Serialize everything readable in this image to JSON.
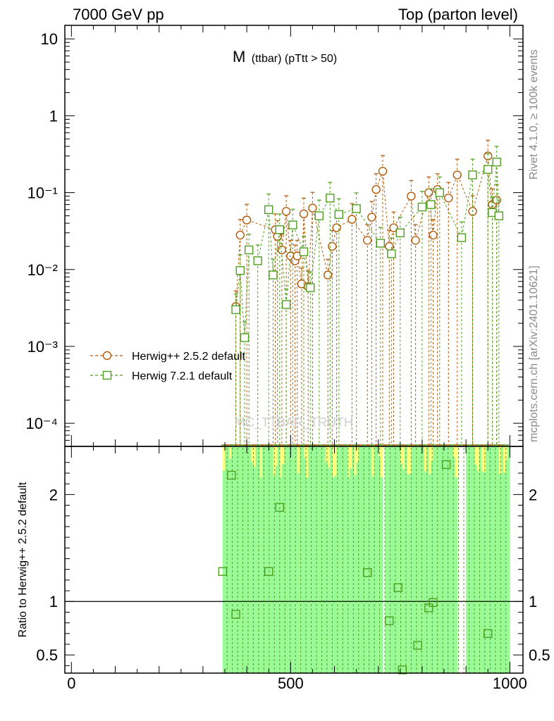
{
  "header": {
    "energy_label": "7000 GeV pp",
    "process_label": "Top (parton level)"
  },
  "side_text": {
    "rivet": "Rivet 4.1.0, ≥ 100k events",
    "mcplots": "mcplots.cern.ch [arXiv:2401.10621]"
  },
  "watermark": "MC_TTBAR_TRUTH",
  "chart_data": {
    "type": "line",
    "title": "M (ttbar) (pTtt > 50)",
    "title_main": "M",
    "title_sub": "(ttbar) (pTtt > 50)",
    "xlabel": "",
    "ylabel": "",
    "xlim": [
      -15,
      1030
    ],
    "ylim": [
      5e-05,
      15
    ],
    "y_scale": "log",
    "x_ticks": [
      "0",
      "500",
      "1000"
    ],
    "y_ticks": [
      "10",
      "1",
      "10⁻¹",
      "10⁻²",
      "10⁻³",
      "10⁻⁴"
    ],
    "legend_position": "middle-left",
    "series": [
      {
        "name": "Herwig++ 2.5.2 default",
        "color": "#b35806",
        "marker": "circle",
        "x": [
          375,
          385,
          400,
          465,
          470,
          480,
          490,
          500,
          510,
          515,
          525,
          530,
          540,
          550,
          585,
          595,
          605,
          640,
          675,
          685,
          695,
          710,
          725,
          735,
          775,
          785,
          815,
          825,
          835,
          860,
          880,
          915,
          950,
          960,
          970
        ],
        "y": [
          0.0033,
          0.028,
          0.044,
          0.033,
          0.027,
          0.018,
          0.057,
          0.015,
          0.013,
          0.015,
          0.0065,
          0.053,
          0.006,
          0.063,
          0.0085,
          0.02,
          0.035,
          0.045,
          0.024,
          0.048,
          0.11,
          0.19,
          0.02,
          0.035,
          0.09,
          0.024,
          0.1,
          0.028,
          0.11,
          0.085,
          0.17,
          0.057,
          0.3,
          0.07,
          0.08
        ]
      },
      {
        "name": "Herwig 7.2.1 default",
        "color": "#4ea01c",
        "marker": "square",
        "x": [
          375,
          385,
          395,
          405,
          425,
          450,
          460,
          475,
          490,
          505,
          530,
          545,
          565,
          590,
          610,
          650,
          705,
          730,
          750,
          800,
          820,
          840,
          890,
          915,
          950,
          960,
          970,
          975
        ],
        "y": [
          0.003,
          0.0097,
          0.0013,
          0.018,
          0.013,
          0.06,
          0.0085,
          0.033,
          0.0035,
          0.038,
          0.017,
          0.0058,
          0.05,
          0.085,
          0.052,
          0.062,
          0.022,
          0.016,
          0.03,
          0.065,
          0.07,
          0.1,
          0.026,
          0.17,
          0.2,
          0.055,
          0.25,
          0.05
        ]
      }
    ],
    "ratio_panel": {
      "ylabel": "Ratio to Herwig++ 2.5.2 default",
      "ylim": [
        0.33,
        2.45
      ],
      "y_ticks": [
        "0.5",
        "1",
        "2"
      ],
      "reference": 1,
      "band_range": [
        345,
        1000
      ],
      "ratio_points": {
        "x": [
          345,
          365,
          375,
          450,
          475,
          675,
          725,
          745,
          815,
          825
        ],
        "y": [
          1.28,
          2.18,
          0.88,
          1.28,
          1.88,
          1.27,
          0.82,
          1.13,
          0.94,
          0.99
        ]
      },
      "extra_points": {
        "x": [
          755,
          790,
          855,
          950
        ],
        "y": [
          0.36,
          0.59,
          2.28,
          0.7
        ]
      }
    }
  }
}
